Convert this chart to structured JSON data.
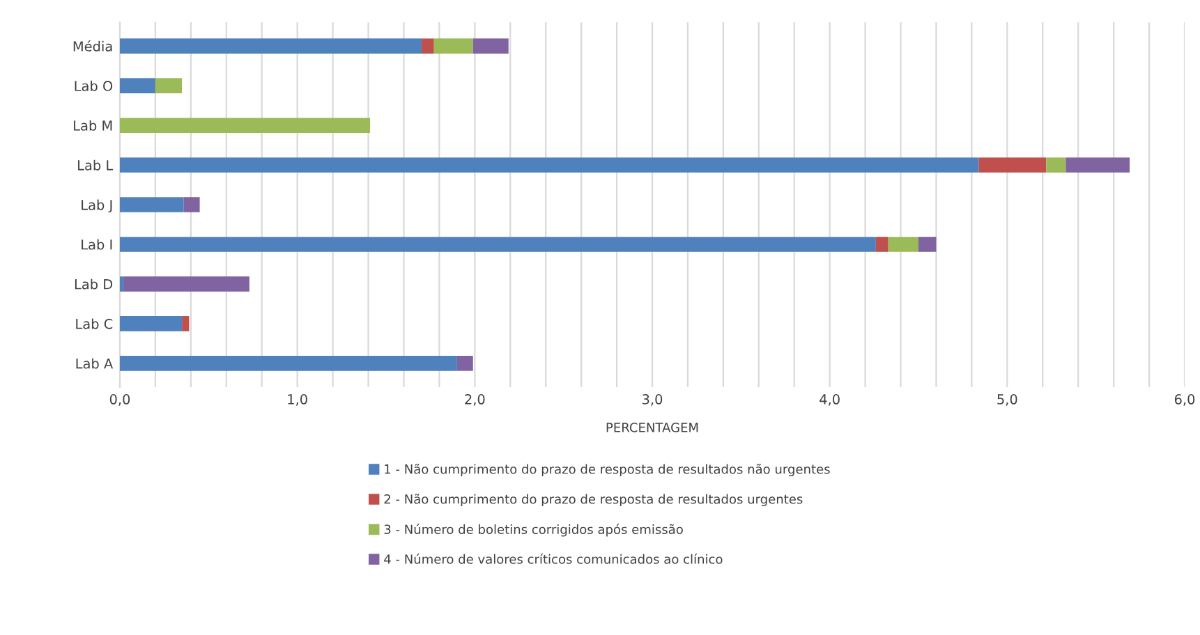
{
  "chart_data": {
    "type": "bar",
    "orientation": "horizontal",
    "stacked": true,
    "xlabel": "PERCENTAGEM",
    "categories": [
      "Média",
      "Lab O",
      "Lab M",
      "Lab L",
      "Lab J",
      "Lab I",
      "Lab D",
      "Lab C",
      "Lab A"
    ],
    "series": [
      {
        "name": "1 - Não cumprimento do prazo de resposta de resultados não urgentes",
        "color": "#4f81bd",
        "values": [
          1.7,
          0.2,
          0,
          4.84,
          0.36,
          4.26,
          0.02,
          0.35,
          1.9
        ]
      },
      {
        "name": "2 - Não cumprimento do prazo de resposta de resultados urgentes",
        "color": "#c0504d",
        "values": [
          0.07,
          0,
          0,
          0.38,
          0,
          0.07,
          0,
          0.04,
          0
        ]
      },
      {
        "name": "3 - Número de boletins corrigidos após emissão",
        "color": "#9bbb59",
        "values": [
          0.22,
          0.15,
          1.41,
          0.11,
          0,
          0.17,
          0,
          0,
          0
        ]
      },
      {
        "name": "4 - Número de valores críticos comunicados ao clínico",
        "color": "#8064a2",
        "values": [
          0.2,
          0,
          0,
          0.36,
          0.09,
          0.1,
          0.71,
          0,
          0.09
        ]
      }
    ],
    "xlim": [
      0,
      6
    ],
    "xticks": [
      {
        "value": 0,
        "label": "0,0"
      },
      {
        "value": 0.2,
        "label": null
      },
      {
        "value": 0.4,
        "label": null
      },
      {
        "value": 0.6,
        "label": null
      },
      {
        "value": 0.8,
        "label": null
      },
      {
        "value": 1,
        "label": "1,0"
      },
      {
        "value": 1.2,
        "label": null
      },
      {
        "value": 1.4,
        "label": null
      },
      {
        "value": 1.6,
        "label": null
      },
      {
        "value": 1.8,
        "label": null
      },
      {
        "value": 2,
        "label": "2,0"
      },
      {
        "value": 2.2,
        "label": null
      },
      {
        "value": 2.4,
        "label": null
      },
      {
        "value": 2.6,
        "label": null
      },
      {
        "value": 2.8,
        "label": null
      },
      {
        "value": 3,
        "label": "3,0"
      },
      {
        "value": 3.2,
        "label": null
      },
      {
        "value": 3.4,
        "label": null
      },
      {
        "value": 3.6,
        "label": null
      },
      {
        "value": 3.8,
        "label": null
      },
      {
        "value": 4,
        "label": "4,0"
      },
      {
        "value": 4.2,
        "label": null
      },
      {
        "value": 4.4,
        "label": null
      },
      {
        "value": 4.6,
        "label": null
      },
      {
        "value": 4.8,
        "label": null
      },
      {
        "value": 5,
        "label": "5,0"
      },
      {
        "value": 5.2,
        "label": null
      },
      {
        "value": 5.4,
        "label": null
      },
      {
        "value": 5.6,
        "label": null
      },
      {
        "value": 5.8,
        "label": null
      },
      {
        "value": 6,
        "label": "6,0"
      }
    ],
    "grid": "x",
    "legend": "bottom"
  }
}
